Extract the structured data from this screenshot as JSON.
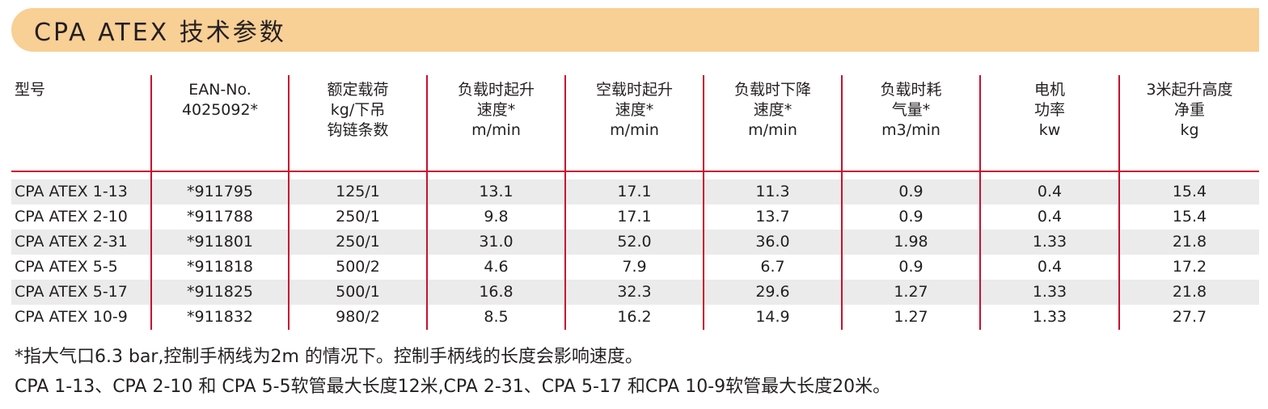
{
  "title": "CPA ATEX 技术参数",
  "table": {
    "headers": [
      [
        "型号"
      ],
      [
        "EAN-No.",
        "4025092*"
      ],
      [
        "额定载荷",
        "kg/下吊",
        "钩链条数"
      ],
      [
        "负载时起升",
        "速度*",
        "m/min"
      ],
      [
        "空载时起升",
        "速度*",
        "m/min"
      ],
      [
        "负载时下降",
        "速度*",
        "m/min"
      ],
      [
        "负载时耗",
        "气量*",
        "m3/min"
      ],
      [
        "电机",
        "功率",
        "kw"
      ],
      [
        "3米起升高度",
        "净重",
        "kg"
      ]
    ],
    "rows": [
      [
        "CPA ATEX 1-13",
        "*911795",
        "125/1",
        "13.1",
        "17.1",
        "11.3",
        "0.9",
        "0.4",
        "15.4"
      ],
      [
        "CPA ATEX 2-10",
        "*911788",
        "250/1",
        "9.8",
        "17.1",
        "13.7",
        "0.9",
        "0.4",
        "15.4"
      ],
      [
        "CPA ATEX 2-31",
        "*911801",
        "250/1",
        "31.0",
        "52.0",
        "36.0",
        "1.98",
        "1.33",
        "21.8"
      ],
      [
        "CPA ATEX 5-5",
        "*911818",
        "500/2",
        "4.6",
        "7.9",
        "6.7",
        "0.9",
        "0.4",
        "17.2"
      ],
      [
        "CPA ATEX 5-17",
        "*911825",
        "500/1",
        "16.8",
        "32.3",
        "29.6",
        "1.27",
        "1.33",
        "21.8"
      ],
      [
        "CPA ATEX 10-9",
        "*911832",
        "980/2",
        "8.5",
        "16.2",
        "14.9",
        "1.27",
        "1.33",
        "27.7"
      ]
    ]
  },
  "notes": {
    "note1": "*指大气口6.3 bar,控制手柄线为2m 的情况下。控制手柄线的长度会影响速度。",
    "note2": "CPA 1-13、CPA 2-10 和 CPA 5-5软管最大长度12米,CPA 2-31、CPA 5-17 和CPA 10-9软管最大长度20米。"
  },
  "colors": {
    "title_bar": "#f8cf95",
    "divider": "#c8102e",
    "row_shade": "#ebebeb",
    "text": "#231f20"
  }
}
